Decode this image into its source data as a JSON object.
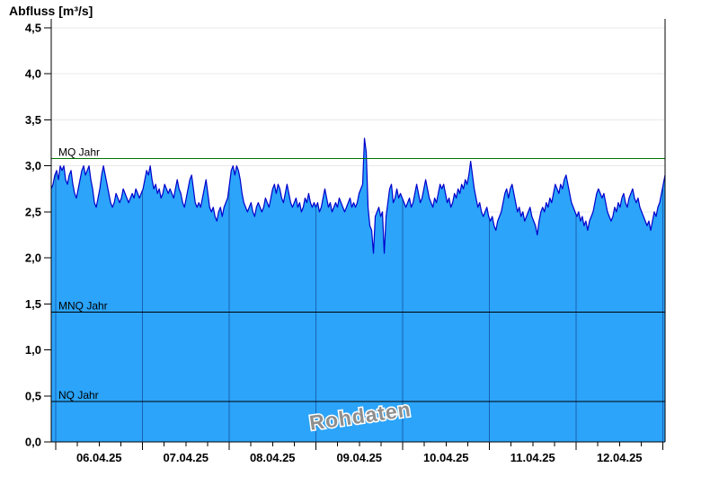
{
  "chart_data": {
    "type": "area",
    "title": "Abfluss [m³/s]",
    "watermark": "Rohdaten",
    "y_axis": {
      "min": 0,
      "max": 4.5,
      "tick_step": 0.5,
      "tick_labels": [
        "0,0",
        "0,5",
        "1,0",
        "1,5",
        "2,0",
        "2,5",
        "3,0",
        "3,5",
        "4,0",
        "4,5"
      ]
    },
    "x_axis": {
      "tick_labels": [
        "06.04.25",
        "07.04.25",
        "08.04.25",
        "09.04.25",
        "10.04.25",
        "11.04.25",
        "12.04.25"
      ],
      "minor_ticks_per_day": 3
    },
    "reference_lines": [
      {
        "label": "MQ Jahr",
        "value": 3.08,
        "color": "#007700"
      },
      {
        "label": "MNQ Jahr",
        "value": 1.41,
        "color": "#000000"
      },
      {
        "label": "NQ Jahr",
        "value": 0.44,
        "color": "#000000"
      }
    ],
    "series": [
      {
        "name": "Abfluss",
        "line_color": "#0000CC",
        "fill_color": "#2BA4FA",
        "values": [
          2.75,
          2.8,
          2.9,
          2.95,
          2.85,
          3.0,
          2.95,
          3.0,
          2.85,
          2.8,
          2.9,
          2.95,
          2.8,
          2.7,
          2.65,
          2.75,
          2.85,
          2.95,
          3.0,
          2.9,
          2.95,
          3.0,
          2.85,
          2.75,
          2.6,
          2.55,
          2.65,
          2.75,
          2.9,
          3.0,
          2.9,
          2.8,
          2.7,
          2.6,
          2.55,
          2.6,
          2.7,
          2.65,
          2.6,
          2.65,
          2.75,
          2.7,
          2.65,
          2.6,
          2.65,
          2.7,
          2.65,
          2.75,
          2.7,
          2.65,
          2.7,
          2.75,
          2.85,
          2.95,
          2.9,
          3.0,
          2.85,
          2.75,
          2.8,
          2.7,
          2.75,
          2.65,
          2.7,
          2.8,
          2.75,
          2.7,
          2.75,
          2.7,
          2.65,
          2.75,
          2.85,
          2.75,
          2.7,
          2.6,
          2.55,
          2.65,
          2.75,
          2.85,
          2.9,
          2.75,
          2.6,
          2.55,
          2.6,
          2.55,
          2.65,
          2.75,
          2.85,
          2.7,
          2.55,
          2.5,
          2.55,
          2.45,
          2.4,
          2.5,
          2.55,
          2.45,
          2.55,
          2.6,
          2.65,
          2.8,
          2.95,
          3.0,
          2.9,
          3.0,
          2.95,
          2.85,
          2.7,
          2.6,
          2.55,
          2.5,
          2.55,
          2.6,
          2.5,
          2.45,
          2.55,
          2.6,
          2.55,
          2.5,
          2.55,
          2.65,
          2.6,
          2.55,
          2.65,
          2.75,
          2.8,
          2.7,
          2.8,
          2.75,
          2.65,
          2.6,
          2.7,
          2.8,
          2.7,
          2.6,
          2.55,
          2.6,
          2.65,
          2.55,
          2.6,
          2.5,
          2.55,
          2.65,
          2.6,
          2.7,
          2.6,
          2.55,
          2.6,
          2.55,
          2.6,
          2.5,
          2.55,
          2.65,
          2.75,
          2.65,
          2.55,
          2.6,
          2.5,
          2.55,
          2.6,
          2.55,
          2.65,
          2.6,
          2.55,
          2.5,
          2.55,
          2.6,
          2.65,
          2.55,
          2.6,
          2.55,
          2.6,
          2.7,
          2.75,
          2.8,
          3.3,
          3.15,
          2.55,
          2.35,
          2.3,
          2.05,
          2.45,
          2.5,
          2.55,
          2.45,
          2.5,
          2.05,
          2.45,
          2.6,
          2.75,
          2.8,
          2.6,
          2.65,
          2.75,
          2.65,
          2.7,
          2.65,
          2.6,
          2.55,
          2.6,
          2.65,
          2.55,
          2.6,
          2.7,
          2.8,
          2.7,
          2.6,
          2.65,
          2.75,
          2.85,
          2.75,
          2.65,
          2.6,
          2.55,
          2.65,
          2.6,
          2.7,
          2.8,
          2.75,
          2.8,
          2.7,
          2.6,
          2.65,
          2.55,
          2.6,
          2.7,
          2.65,
          2.75,
          2.7,
          2.8,
          2.75,
          2.85,
          2.8,
          2.9,
          3.05,
          2.9,
          2.75,
          2.65,
          2.55,
          2.6,
          2.5,
          2.45,
          2.5,
          2.55,
          2.45,
          2.4,
          2.45,
          2.35,
          2.3,
          2.4,
          2.45,
          2.5,
          2.6,
          2.7,
          2.75,
          2.65,
          2.75,
          2.8,
          2.7,
          2.6,
          2.5,
          2.55,
          2.45,
          2.5,
          2.4,
          2.45,
          2.5,
          2.55,
          2.45,
          2.4,
          2.35,
          2.25,
          2.4,
          2.5,
          2.55,
          2.5,
          2.6,
          2.55,
          2.65,
          2.6,
          2.7,
          2.8,
          2.75,
          2.7,
          2.8,
          2.75,
          2.85,
          2.9,
          2.8,
          2.7,
          2.6,
          2.55,
          2.5,
          2.45,
          2.5,
          2.4,
          2.45,
          2.35,
          2.4,
          2.3,
          2.4,
          2.45,
          2.5,
          2.6,
          2.7,
          2.75,
          2.7,
          2.65,
          2.7,
          2.6,
          2.5,
          2.45,
          2.4,
          2.45,
          2.55,
          2.5,
          2.6,
          2.55,
          2.65,
          2.7,
          2.6,
          2.55,
          2.65,
          2.7,
          2.75,
          2.65,
          2.6,
          2.65,
          2.55,
          2.5,
          2.45,
          2.4,
          2.35,
          2.4,
          2.3,
          2.4,
          2.5,
          2.45,
          2.55,
          2.6,
          2.7,
          2.8,
          2.9
        ]
      }
    ],
    "colors": {
      "grid": "#E8E8E8",
      "axis": "#000000",
      "day_divider": "rgba(0,0,70,0.40)",
      "watermark": "#8F8F8F"
    }
  }
}
